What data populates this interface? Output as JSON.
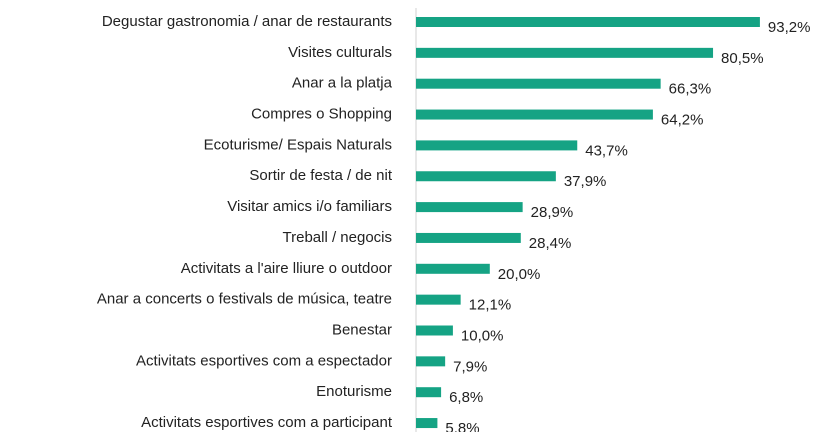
{
  "chart_data": {
    "type": "bar",
    "orientation": "horizontal",
    "categories": [
      "Degustar gastronomia / anar de restaurants",
      "Visites culturals",
      "Anar a la platja",
      "Compres o Shopping",
      "Ecoturisme/ Espais Naturals",
      "Sortir de festa / de nit",
      "Visitar amics i/o familiars",
      "Treball / negocis",
      "Activitats a l'aire lliure o outdoor",
      "Anar a concerts o festivals de música, teatre",
      "Benestar",
      "Activitats esportives com a espectador",
      "Enoturisme",
      "Activitats esportives com a participant"
    ],
    "values": [
      93.2,
      80.5,
      66.3,
      64.2,
      43.7,
      37.9,
      28.9,
      28.4,
      20.0,
      12.1,
      10.0,
      7.9,
      6.8,
      5.8
    ],
    "value_labels": [
      "93,2%",
      "80,5%",
      "66,3%",
      "64,2%",
      "43,7%",
      "37,9%",
      "28,9%",
      "28,4%",
      "20,0%",
      "12,1%",
      "10,0%",
      "7,9%",
      "6,8%",
      "5,8%"
    ],
    "color": "#15a384",
    "xlim": [
      0,
      100
    ]
  }
}
